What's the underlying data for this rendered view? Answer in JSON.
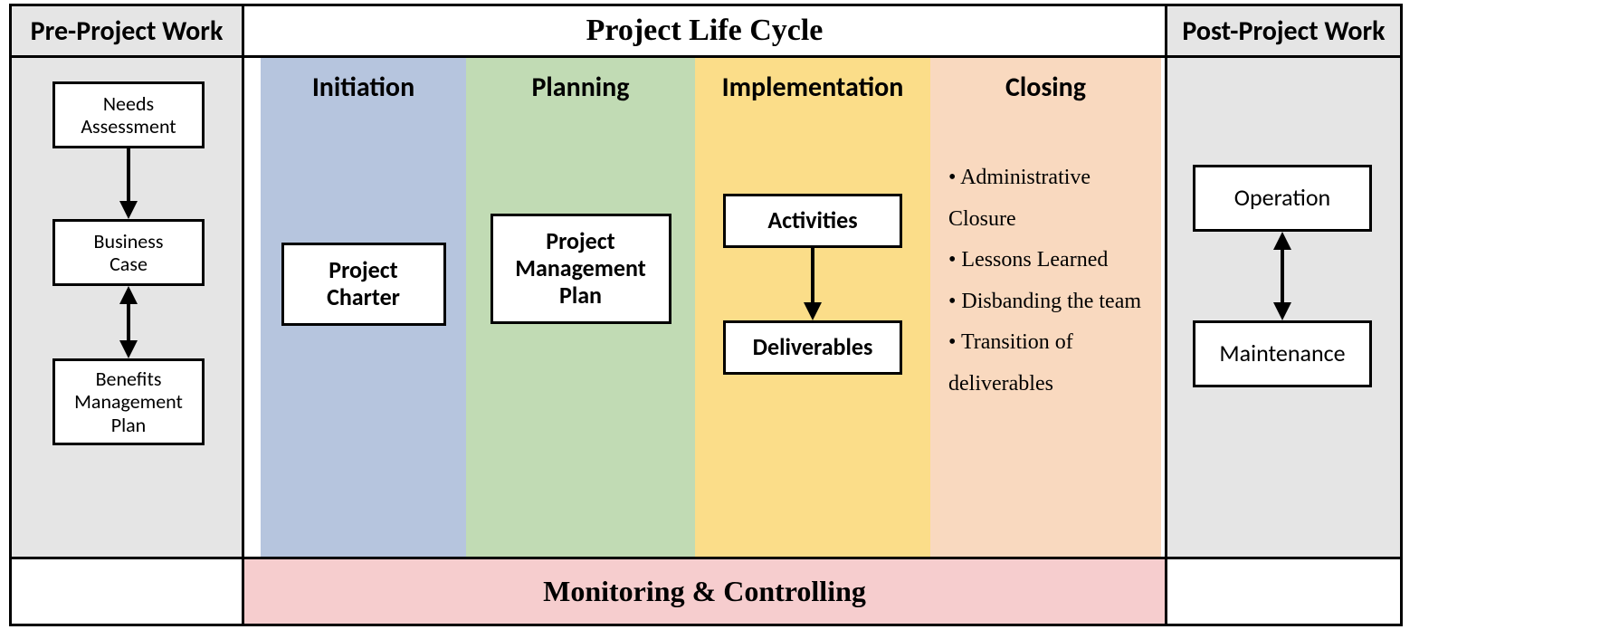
{
  "type": "flowchart",
  "background_color": "#ffffff",
  "border_color": "#000000",
  "gray_fill": "#e5e5e5",
  "headers": {
    "pre": "Pre-Project Work",
    "plc": "Project Life Cycle",
    "post": "Post-Project Work"
  },
  "pre_project": {
    "boxes": [
      {
        "label": "Needs\nAssessment"
      },
      {
        "label": "Business\nCase"
      },
      {
        "label": "Benefits\nManagement\nPlan"
      }
    ],
    "arrows": [
      {
        "from": 0,
        "to": 1,
        "bidirectional": false
      },
      {
        "from": 1,
        "to": 2,
        "bidirectional": true
      }
    ]
  },
  "phases": [
    {
      "name": "Initiation",
      "color": "#b6c5de",
      "boxes": [
        {
          "label": "Project\nCharter"
        }
      ]
    },
    {
      "name": "Planning",
      "color": "#c1dbb4",
      "boxes": [
        {
          "label": "Project\nManagement\nPlan"
        }
      ]
    },
    {
      "name": "Implementation",
      "color": "#fbdd89",
      "boxes": [
        {
          "label": "Activities"
        },
        {
          "label": "Deliverables"
        }
      ],
      "arrows": [
        {
          "from": 0,
          "to": 1,
          "bidirectional": false
        }
      ]
    },
    {
      "name": "Closing",
      "color": "#f9d9bf",
      "bullets": [
        "Administrative Closure",
        "Lessons Learned",
        "Disbanding the team",
        "Transition of deliverables"
      ]
    }
  ],
  "monitoring_label": "Monitoring & Controlling",
  "monitoring_color": "#f6cdce",
  "post_project": {
    "boxes": [
      {
        "label": "Operation"
      },
      {
        "label": "Maintenance"
      }
    ],
    "arrows": [
      {
        "from": 0,
        "to": 1,
        "bidirectional": true
      }
    ]
  },
  "fonts": {
    "header_size": 30,
    "plc_title_size": 34,
    "phase_label_size": 30,
    "box_label_size": 26,
    "pre_box_label_size": 22,
    "bullet_size": 24,
    "monitoring_size": 32
  }
}
